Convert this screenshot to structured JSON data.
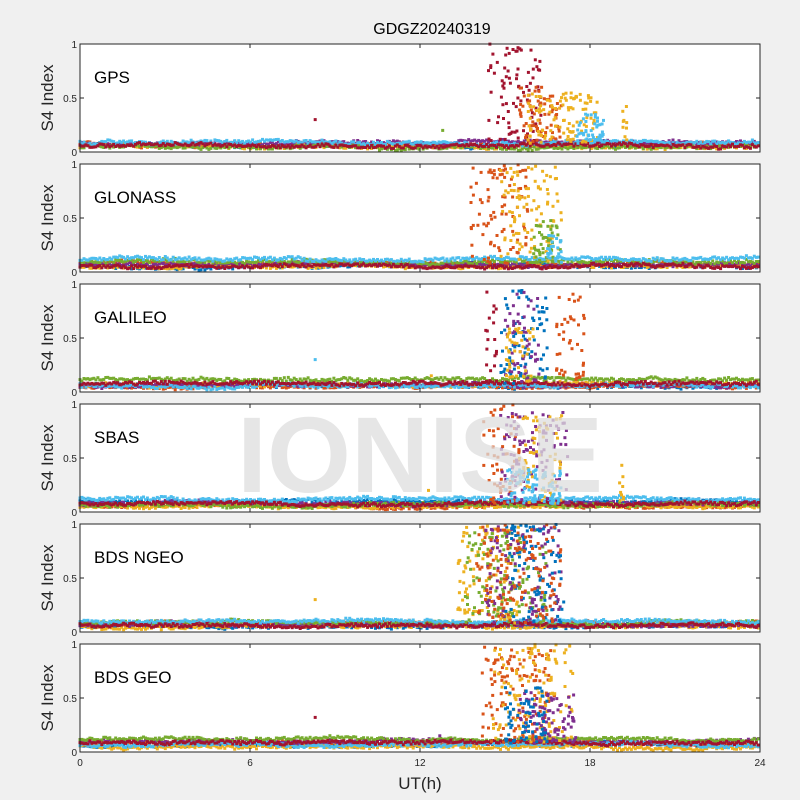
{
  "title": "GDGZ20240319",
  "xlabel": "UT(h)",
  "watermark": "IONISE",
  "colors": [
    "#0072BD",
    "#D95319",
    "#EDB120",
    "#7E2F8E",
    "#77AC30",
    "#4DBEEE",
    "#A2142F"
  ],
  "chart_data": [
    {
      "type": "scatter",
      "title": "GPS",
      "ylabel": "S4 Index",
      "xlim": [
        0,
        24
      ],
      "ylim": [
        0,
        1
      ],
      "yticks": [
        "0",
        "0.5",
        "1"
      ],
      "baseline": [
        0.06,
        0.07,
        0.05,
        0.08,
        0.05,
        0.09,
        0.06
      ],
      "events": [
        {
          "series": 6,
          "t": [
            14.4,
            16.3
          ],
          "max": 1.0
        },
        {
          "series": 1,
          "t": [
            15.5,
            17.0
          ],
          "max": 0.6
        },
        {
          "series": 2,
          "t": [
            15.8,
            18.3
          ],
          "max": 0.55
        },
        {
          "series": 5,
          "t": [
            17.5,
            18.5
          ],
          "max": 0.35
        },
        {
          "series": 2,
          "t": [
            19.1,
            19.3
          ],
          "max": 0.5
        }
      ],
      "isolated": [
        [
          8.3,
          0.3,
          6
        ],
        [
          12.8,
          0.2,
          4
        ]
      ]
    },
    {
      "type": "scatter",
      "title": "GLONASS",
      "ylabel": "S4 Index",
      "xlim": [
        0,
        24
      ],
      "ylim": [
        0,
        1
      ],
      "yticks": [
        "0",
        "0.5",
        "1"
      ],
      "baseline": [
        0.06,
        0.08,
        0.05,
        0.07,
        0.1,
        0.12,
        0.06
      ],
      "events": [
        {
          "series": 1,
          "t": [
            13.8,
            15.8
          ],
          "max": 1.0
        },
        {
          "series": 2,
          "t": [
            14.8,
            17.0
          ],
          "max": 1.0
        },
        {
          "series": 4,
          "t": [
            16.0,
            17.0
          ],
          "max": 0.5
        },
        {
          "series": 5,
          "t": [
            16.5,
            17.0
          ],
          "max": 0.35
        }
      ],
      "isolated": []
    },
    {
      "type": "scatter",
      "title": "GALILEO",
      "ylabel": "S4 Index",
      "xlim": [
        0,
        24
      ],
      "ylim": [
        0,
        1
      ],
      "yticks": [
        "0",
        "0.5",
        "1"
      ],
      "baseline": [
        0.06,
        0.05,
        0.07,
        0.06,
        0.12,
        0.06,
        0.08
      ],
      "events": [
        {
          "series": 6,
          "t": [
            14.3,
            14.7
          ],
          "max": 0.95
        },
        {
          "series": 0,
          "t": [
            14.8,
            16.5
          ],
          "max": 0.95
        },
        {
          "series": 3,
          "t": [
            15.0,
            16.2
          ],
          "max": 0.95
        },
        {
          "series": 2,
          "t": [
            15.0,
            16.0
          ],
          "max": 0.6
        },
        {
          "series": 1,
          "t": [
            16.8,
            17.8
          ],
          "max": 0.95
        }
      ],
      "isolated": [
        [
          8.3,
          0.3,
          5
        ],
        [
          12.4,
          0.15,
          2
        ]
      ]
    },
    {
      "type": "scatter",
      "title": "SBAS",
      "ylabel": "S4 Index",
      "xlim": [
        0,
        24
      ],
      "ylim": [
        0,
        1
      ],
      "yticks": [
        "0",
        "0.5",
        "1"
      ],
      "baseline": [
        0.1,
        0.06,
        0.05,
        0.08,
        0.07,
        0.12,
        0.08
      ],
      "events": [
        {
          "series": 1,
          "t": [
            14.2,
            15.5
          ],
          "max": 1.0
        },
        {
          "series": 3,
          "t": [
            14.8,
            17.3
          ],
          "max": 0.95
        },
        {
          "series": 2,
          "t": [
            15.5,
            17.0
          ],
          "max": 0.9
        },
        {
          "series": 5,
          "t": [
            15.0,
            17.0
          ],
          "max": 0.4
        },
        {
          "series": 2,
          "t": [
            19.0,
            19.2
          ],
          "max": 0.5
        }
      ],
      "isolated": [
        [
          12.3,
          0.2,
          2
        ]
      ]
    },
    {
      "type": "scatter",
      "title": "BDS NGEO",
      "ylabel": "S4 Index",
      "xlim": [
        0,
        24
      ],
      "ylim": [
        0,
        1
      ],
      "yticks": [
        "0",
        "0.5",
        "1"
      ],
      "baseline": [
        0.06,
        0.08,
        0.05,
        0.07,
        0.09,
        0.1,
        0.06
      ],
      "events": [
        {
          "series": 2,
          "t": [
            13.3,
            15.5
          ],
          "max": 1.0
        },
        {
          "series": 4,
          "t": [
            13.6,
            16.5
          ],
          "max": 0.95
        },
        {
          "series": 3,
          "t": [
            14.3,
            17.0
          ],
          "max": 1.0
        },
        {
          "series": 0,
          "t": [
            15.0,
            17.1
          ],
          "max": 1.0
        },
        {
          "series": 1,
          "t": [
            14.0,
            17.0
          ],
          "max": 1.0
        }
      ],
      "isolated": [
        [
          8.3,
          0.3,
          2
        ]
      ]
    },
    {
      "type": "scatter",
      "title": "BDS GEO",
      "ylabel": "S4 Index",
      "xlim": [
        0,
        24
      ],
      "ylim": [
        0,
        1
      ],
      "yticks": [
        "0",
        "0.5",
        "1"
      ],
      "xticks": [
        "0",
        "6",
        "12",
        "18",
        "24"
      ],
      "baseline": [
        0.07,
        0.08,
        0.05,
        0.1,
        0.12,
        0.07,
        0.09
      ],
      "events": [
        {
          "series": 1,
          "t": [
            14.2,
            16.8
          ],
          "max": 1.0
        },
        {
          "series": 2,
          "t": [
            14.5,
            17.4
          ],
          "max": 1.0
        },
        {
          "series": 3,
          "t": [
            15.5,
            17.5
          ],
          "max": 0.55
        },
        {
          "series": 0,
          "t": [
            15.0,
            16.5
          ],
          "max": 0.6
        }
      ],
      "isolated": [
        [
          8.3,
          0.32,
          6
        ],
        [
          12.7,
          0.15,
          3
        ]
      ]
    }
  ]
}
